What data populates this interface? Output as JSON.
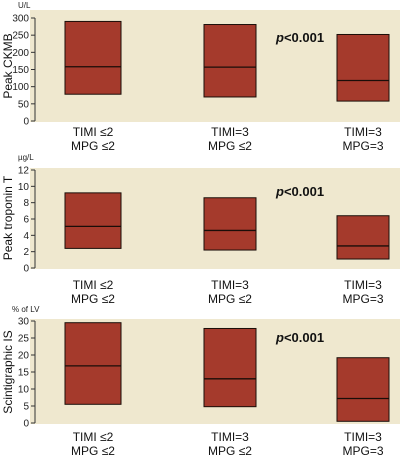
{
  "colors": {
    "panel_bg": "#efe8cf",
    "box_fill": "#a53a2c",
    "box_stroke": "#1a0d08",
    "axis": "#333333"
  },
  "chart_data": [
    {
      "type": "box",
      "ylabel": "Peak CKMB",
      "unit": "U/L",
      "ylim": [
        0,
        300
      ],
      "yticks": [
        0,
        50,
        100,
        150,
        200,
        250,
        300
      ],
      "p_value": {
        "prefix": "p",
        "rest": "<0.001"
      },
      "categories": [
        {
          "line1": "TIMI ≤2",
          "line2": "MPG ≤2",
          "low": 78,
          "median": 158,
          "high": 290
        },
        {
          "line1": "TIMI=3",
          "line2": "MPG ≤2",
          "low": 70,
          "median": 157,
          "high": 281
        },
        {
          "line1": "TIMI=3",
          "line2": "MPG=3",
          "low": 58,
          "median": 118,
          "high": 252
        }
      ]
    },
    {
      "type": "box",
      "ylabel": "Peak troponin T",
      "unit": "µg/L",
      "ylim": [
        0,
        12
      ],
      "yticks": [
        0,
        2,
        4,
        6,
        8,
        10,
        12
      ],
      "p_value": {
        "prefix": "p",
        "rest": "<0.001"
      },
      "categories": [
        {
          "line1": "TIMI ≤2",
          "line2": "MPG ≤2",
          "low": 2.4,
          "median": 5.1,
          "high": 9.2
        },
        {
          "line1": "TIMI=3",
          "line2": "MPG ≤2",
          "low": 2.2,
          "median": 4.6,
          "high": 8.6
        },
        {
          "line1": "TIMI=3",
          "line2": "MPG=3",
          "low": 1.1,
          "median": 2.7,
          "high": 6.4
        }
      ]
    },
    {
      "type": "box",
      "ylabel": "Scintigraphic IS",
      "unit": "% of LV",
      "ylim": [
        0,
        30
      ],
      "yticks": [
        0,
        5,
        10,
        15,
        20,
        25,
        30
      ],
      "p_value": {
        "prefix": "p",
        "rest": "<0.001"
      },
      "categories": [
        {
          "line1": "TIMI ≤2",
          "line2": "MPG ≤2",
          "low": 5.5,
          "median": 16.8,
          "high": 29.5
        },
        {
          "line1": "TIMI=3",
          "line2": "MPG ≤2",
          "low": 4.8,
          "median": 13.0,
          "high": 27.8
        },
        {
          "line1": "TIMI=3",
          "line2": "MPG=3",
          "low": 0.5,
          "median": 7.2,
          "high": 19.2
        }
      ]
    }
  ]
}
